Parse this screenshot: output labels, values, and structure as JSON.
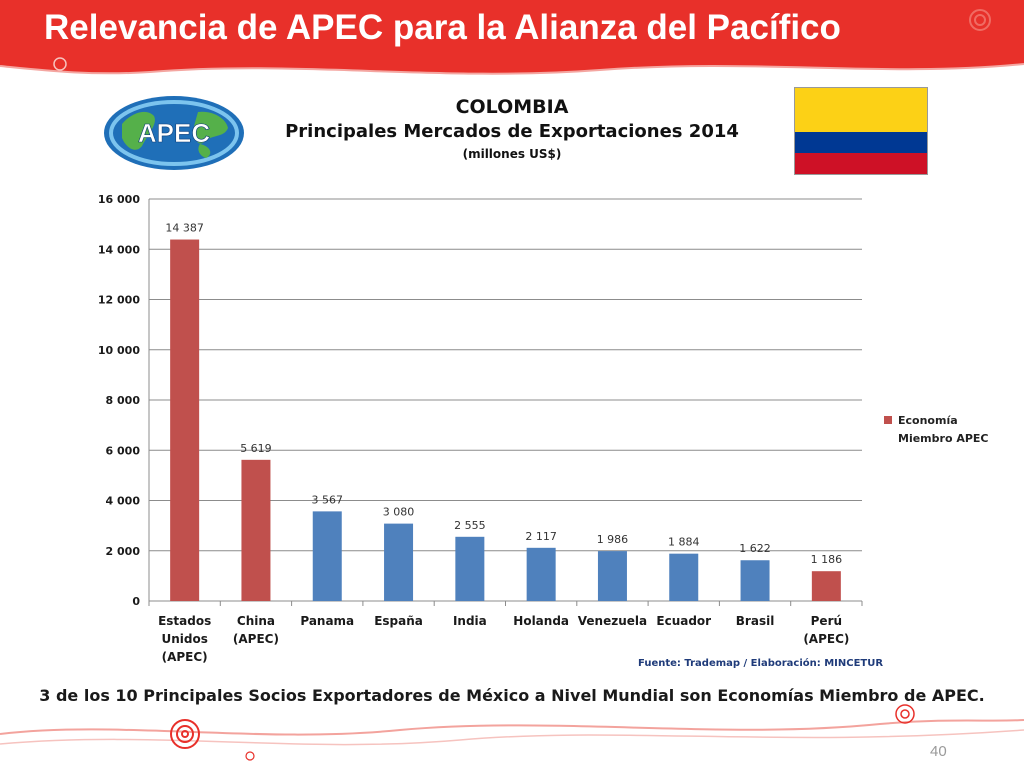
{
  "slide": {
    "title": "Relevancia de APEC para la Alianza del Pacífico",
    "page_number": "40"
  },
  "logo": {
    "text": "APEC"
  },
  "heading": {
    "country": "COLOMBIA",
    "subtitle": "Principales Mercados de Exportaciones 2014",
    "units": "(millones US$)"
  },
  "legend": {
    "label": "Economía Miembro APEC"
  },
  "source": "Fuente: Trademap / Elaboración: MINCETUR",
  "footnote": "3 de los 10 Principales Socios Exportadores de México a Nivel Mundial son Economías Miembro de APEC.",
  "colors": {
    "banner": "#e8302a",
    "apec_bar": "#c0504d",
    "other_bar": "#4f81bd",
    "flag_yellow": "#fcd116",
    "flag_blue": "#003893",
    "flag_red": "#ce1126"
  },
  "chart_data": {
    "type": "bar",
    "categories": [
      [
        "Estados",
        "Unidos",
        "(APEC)"
      ],
      [
        "China",
        "(APEC)"
      ],
      [
        "Panama"
      ],
      [
        "España"
      ],
      [
        "India"
      ],
      [
        "Holanda"
      ],
      [
        "Venezuela"
      ],
      [
        "Ecuador"
      ],
      [
        "Brasil"
      ],
      [
        "Perú",
        "(APEC)"
      ]
    ],
    "values": [
      14387,
      5619,
      3567,
      3080,
      2555,
      2117,
      1986,
      1884,
      1622,
      1186
    ],
    "value_labels": [
      "14 387",
      "5 619",
      "3 567",
      "3 080",
      "2 555",
      "2 117",
      "1 986",
      "1 884",
      "1 622",
      "1 186"
    ],
    "apec_member": [
      true,
      true,
      false,
      false,
      false,
      false,
      false,
      false,
      false,
      true
    ],
    "ylim": [
      0,
      16000
    ],
    "yticks": [
      0,
      2000,
      4000,
      6000,
      8000,
      10000,
      12000,
      14000,
      16000
    ],
    "ytick_labels": [
      "0",
      "2 000",
      "4 000",
      "6 000",
      "8 000",
      "10 000",
      "12 000",
      "14 000",
      "16 000"
    ],
    "grid": true,
    "legend_position": "right"
  }
}
